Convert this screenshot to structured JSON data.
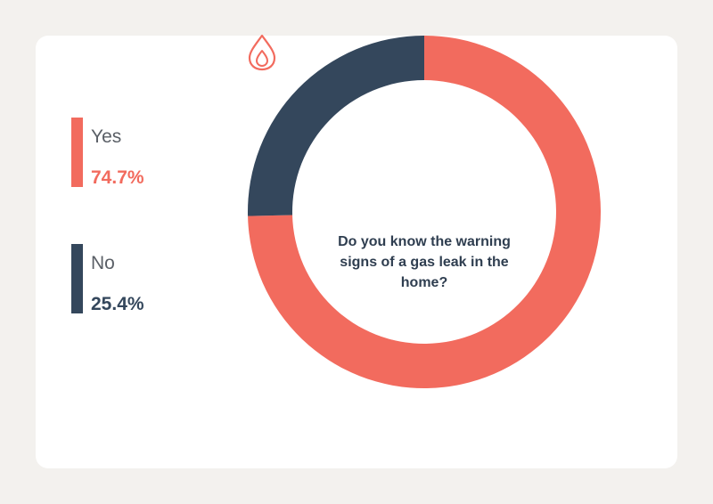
{
  "chart_data": {
    "type": "pie",
    "style": "donut",
    "categories": [
      "Yes",
      "No"
    ],
    "values": [
      74.7,
      25.4
    ],
    "value_labels": [
      "74.7%",
      "25.4%"
    ],
    "colors": [
      "#f26b5e",
      "#34475c"
    ],
    "center_text": "Do you know the warning signs of a gas leak in the home?",
    "center_icon": "gas-flame-drop-icon",
    "legend_position": "left"
  },
  "colors": {
    "background": "#f3f1ee",
    "card": "#ffffff",
    "yes": "#f26b5e",
    "no": "#34475c"
  }
}
